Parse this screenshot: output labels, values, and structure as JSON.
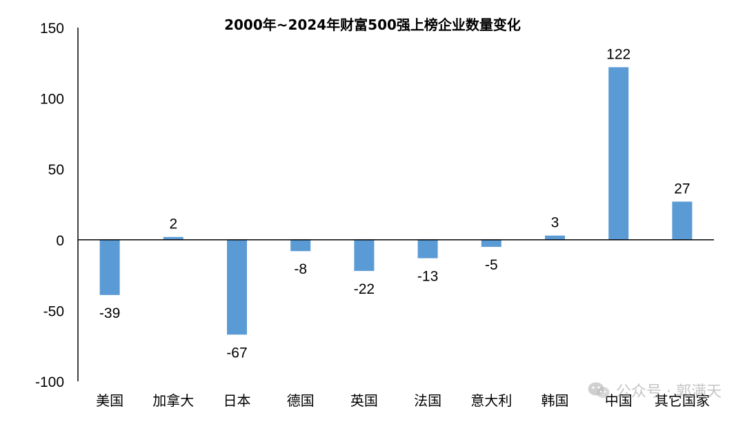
{
  "chart_data": {
    "type": "bar",
    "title": "2000年~2024年财富500强上榜企业数量变化",
    "xlabel": "",
    "ylabel": "",
    "categories": [
      "美国",
      "加拿大",
      "日本",
      "德国",
      "英国",
      "法国",
      "意大利",
      "韩国",
      "中国",
      "其它国家"
    ],
    "values": [
      -39,
      2,
      -67,
      -8,
      -22,
      -13,
      -5,
      3,
      122,
      27
    ],
    "data_labels": [
      "-39",
      "2",
      "-67",
      "-8",
      "-22",
      "-13",
      "-5",
      "3",
      "122",
      "27"
    ],
    "ylim": [
      -100,
      150
    ],
    "yticks": [
      -100,
      -50,
      0,
      50,
      100,
      150
    ],
    "ytick_labels": [
      "-100",
      "-50",
      "0",
      "50",
      "100",
      "150"
    ],
    "bar_color": "#5b9bd5",
    "grid": false,
    "legend": "none"
  },
  "watermark": {
    "text": "公众号 · 郭满天",
    "icon": "wechat-icon"
  }
}
